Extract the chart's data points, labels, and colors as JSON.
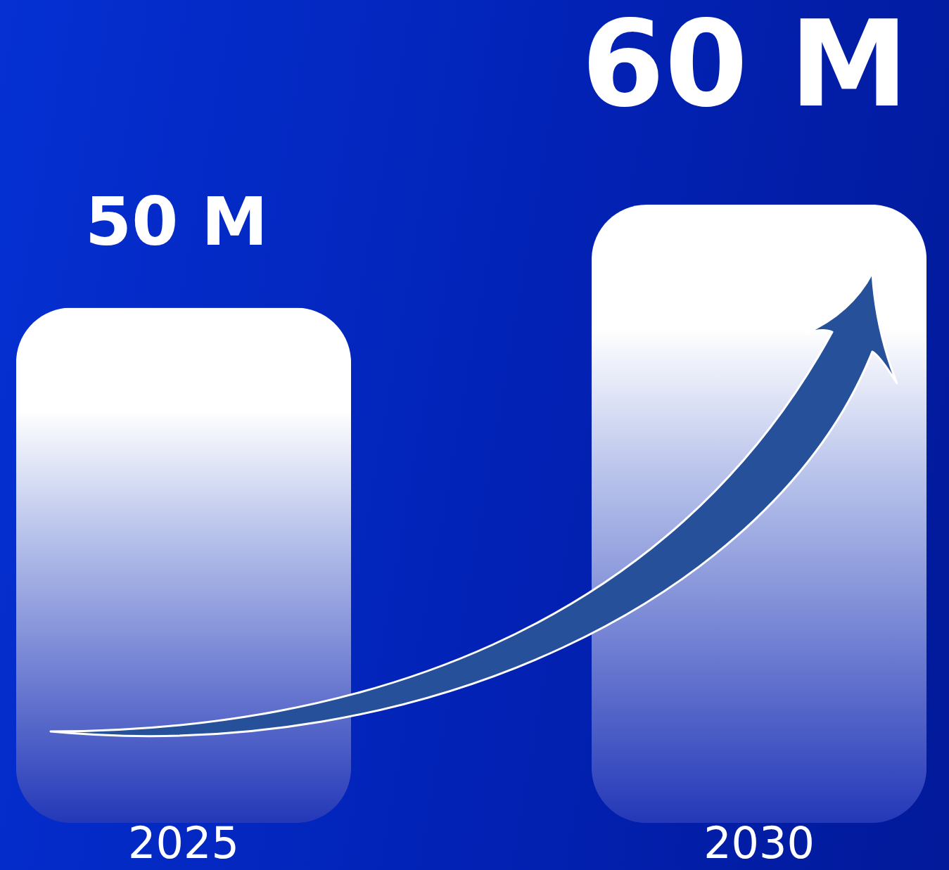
{
  "chart_data": {
    "type": "bar",
    "categories": [
      "2025",
      "2030"
    ],
    "values": [
      50,
      60
    ],
    "value_labels": [
      "50 M",
      "60 M"
    ],
    "color": "#ffffff",
    "tick_labels": "x",
    "grid": false
  }
}
